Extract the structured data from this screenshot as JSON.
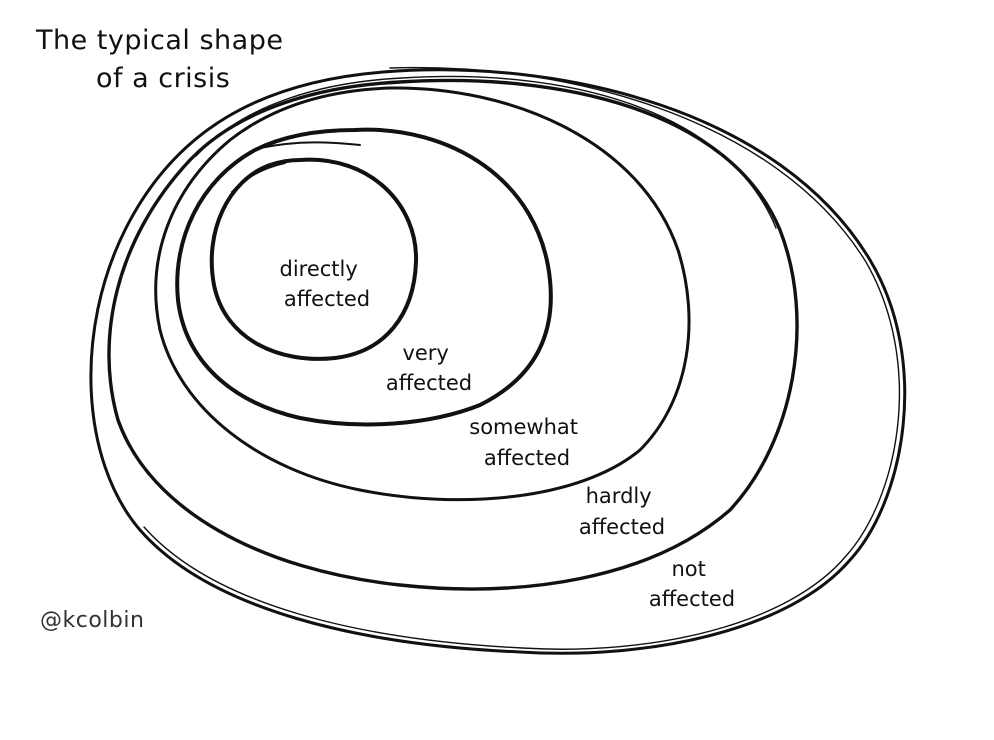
{
  "title": {
    "line1": "The typical shape",
    "line2": "of a crisis"
  },
  "rings": [
    {
      "id": "directly",
      "label_lines": [
        "directly",
        "affected"
      ]
    },
    {
      "id": "very",
      "label_lines": [
        "very",
        "affected"
      ]
    },
    {
      "id": "somewhat",
      "label_lines": [
        "somewhat",
        "affected"
      ]
    },
    {
      "id": "hardly",
      "label_lines": [
        "hardly",
        "affected"
      ]
    },
    {
      "id": "not",
      "label_lines": [
        "not",
        "affected"
      ]
    }
  ],
  "credit": "@kcolbin",
  "colors": {
    "ink": "#111111",
    "background": "#ffffff"
  }
}
